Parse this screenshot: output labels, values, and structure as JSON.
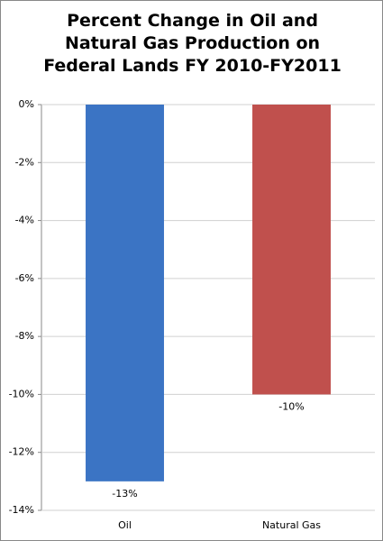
{
  "chart_data": {
    "type": "bar",
    "title": "Percent Change in Oil and Natural Gas Production on Federal Lands FY 2010-FY2011",
    "categories": [
      "Oil",
      "Natural Gas"
    ],
    "values": [
      -13,
      -10
    ],
    "value_labels": [
      "-13%",
      "-10%"
    ],
    "colors": [
      "#3b74c4",
      "#c0504d"
    ],
    "ylim": [
      -14,
      0
    ],
    "yticks": [
      {
        "value": 0,
        "label": "0%"
      },
      {
        "value": -2,
        "label": "-2%"
      },
      {
        "value": -4,
        "label": "-4%"
      },
      {
        "value": -6,
        "label": "-6%"
      },
      {
        "value": -8,
        "label": "-8%"
      },
      {
        "value": -10,
        "label": "-10%"
      },
      {
        "value": -12,
        "label": "-12%"
      },
      {
        "value": -14,
        "label": "-14%"
      }
    ],
    "grid": true
  }
}
